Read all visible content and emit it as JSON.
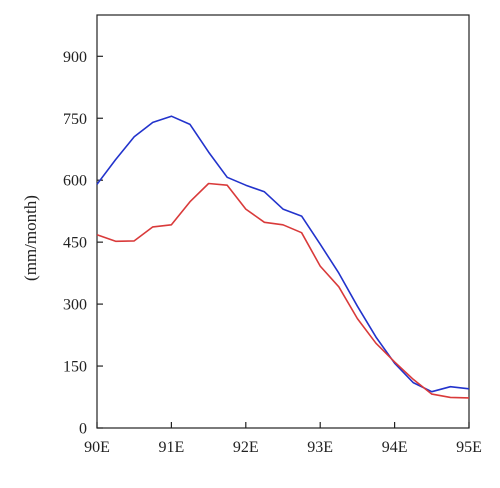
{
  "chart_data": {
    "type": "line",
    "title": "",
    "xlabel": "",
    "ylabel": "(mm/month)",
    "x_ticks": [
      90,
      91,
      92,
      93,
      94,
      95
    ],
    "x_tick_labels": [
      "90E",
      "91E",
      "92E",
      "93E",
      "94E",
      "95E"
    ],
    "y_ticks": [
      0,
      150,
      300,
      450,
      600,
      750,
      900
    ],
    "y_tick_labels": [
      "0",
      "150",
      "300",
      "450",
      "600",
      "750",
      "900"
    ],
    "xlim": [
      90,
      95
    ],
    "ylim": [
      0,
      1000
    ],
    "grid": false,
    "legend": "none",
    "x": [
      90.0,
      90.25,
      90.5,
      90.75,
      91.0,
      91.25,
      91.5,
      91.75,
      92.0,
      92.25,
      92.5,
      92.75,
      93.0,
      93.25,
      93.5,
      93.75,
      94.0,
      94.25,
      94.5,
      94.75,
      95.0
    ],
    "series": [
      {
        "color": "#2233cc",
        "values": [
          590,
          650,
          705,
          740,
          755,
          735,
          668,
          607,
          588,
          572,
          530,
          513,
          445,
          375,
          295,
          220,
          157,
          110,
          88,
          100,
          95
        ]
      },
      {
        "color": "#d93a3a",
        "values": [
          468,
          452,
          453,
          487,
          492,
          548,
          592,
          588,
          530,
          498,
          492,
          473,
          392,
          342,
          265,
          205,
          160,
          118,
          82,
          74,
          73
        ]
      }
    ]
  }
}
